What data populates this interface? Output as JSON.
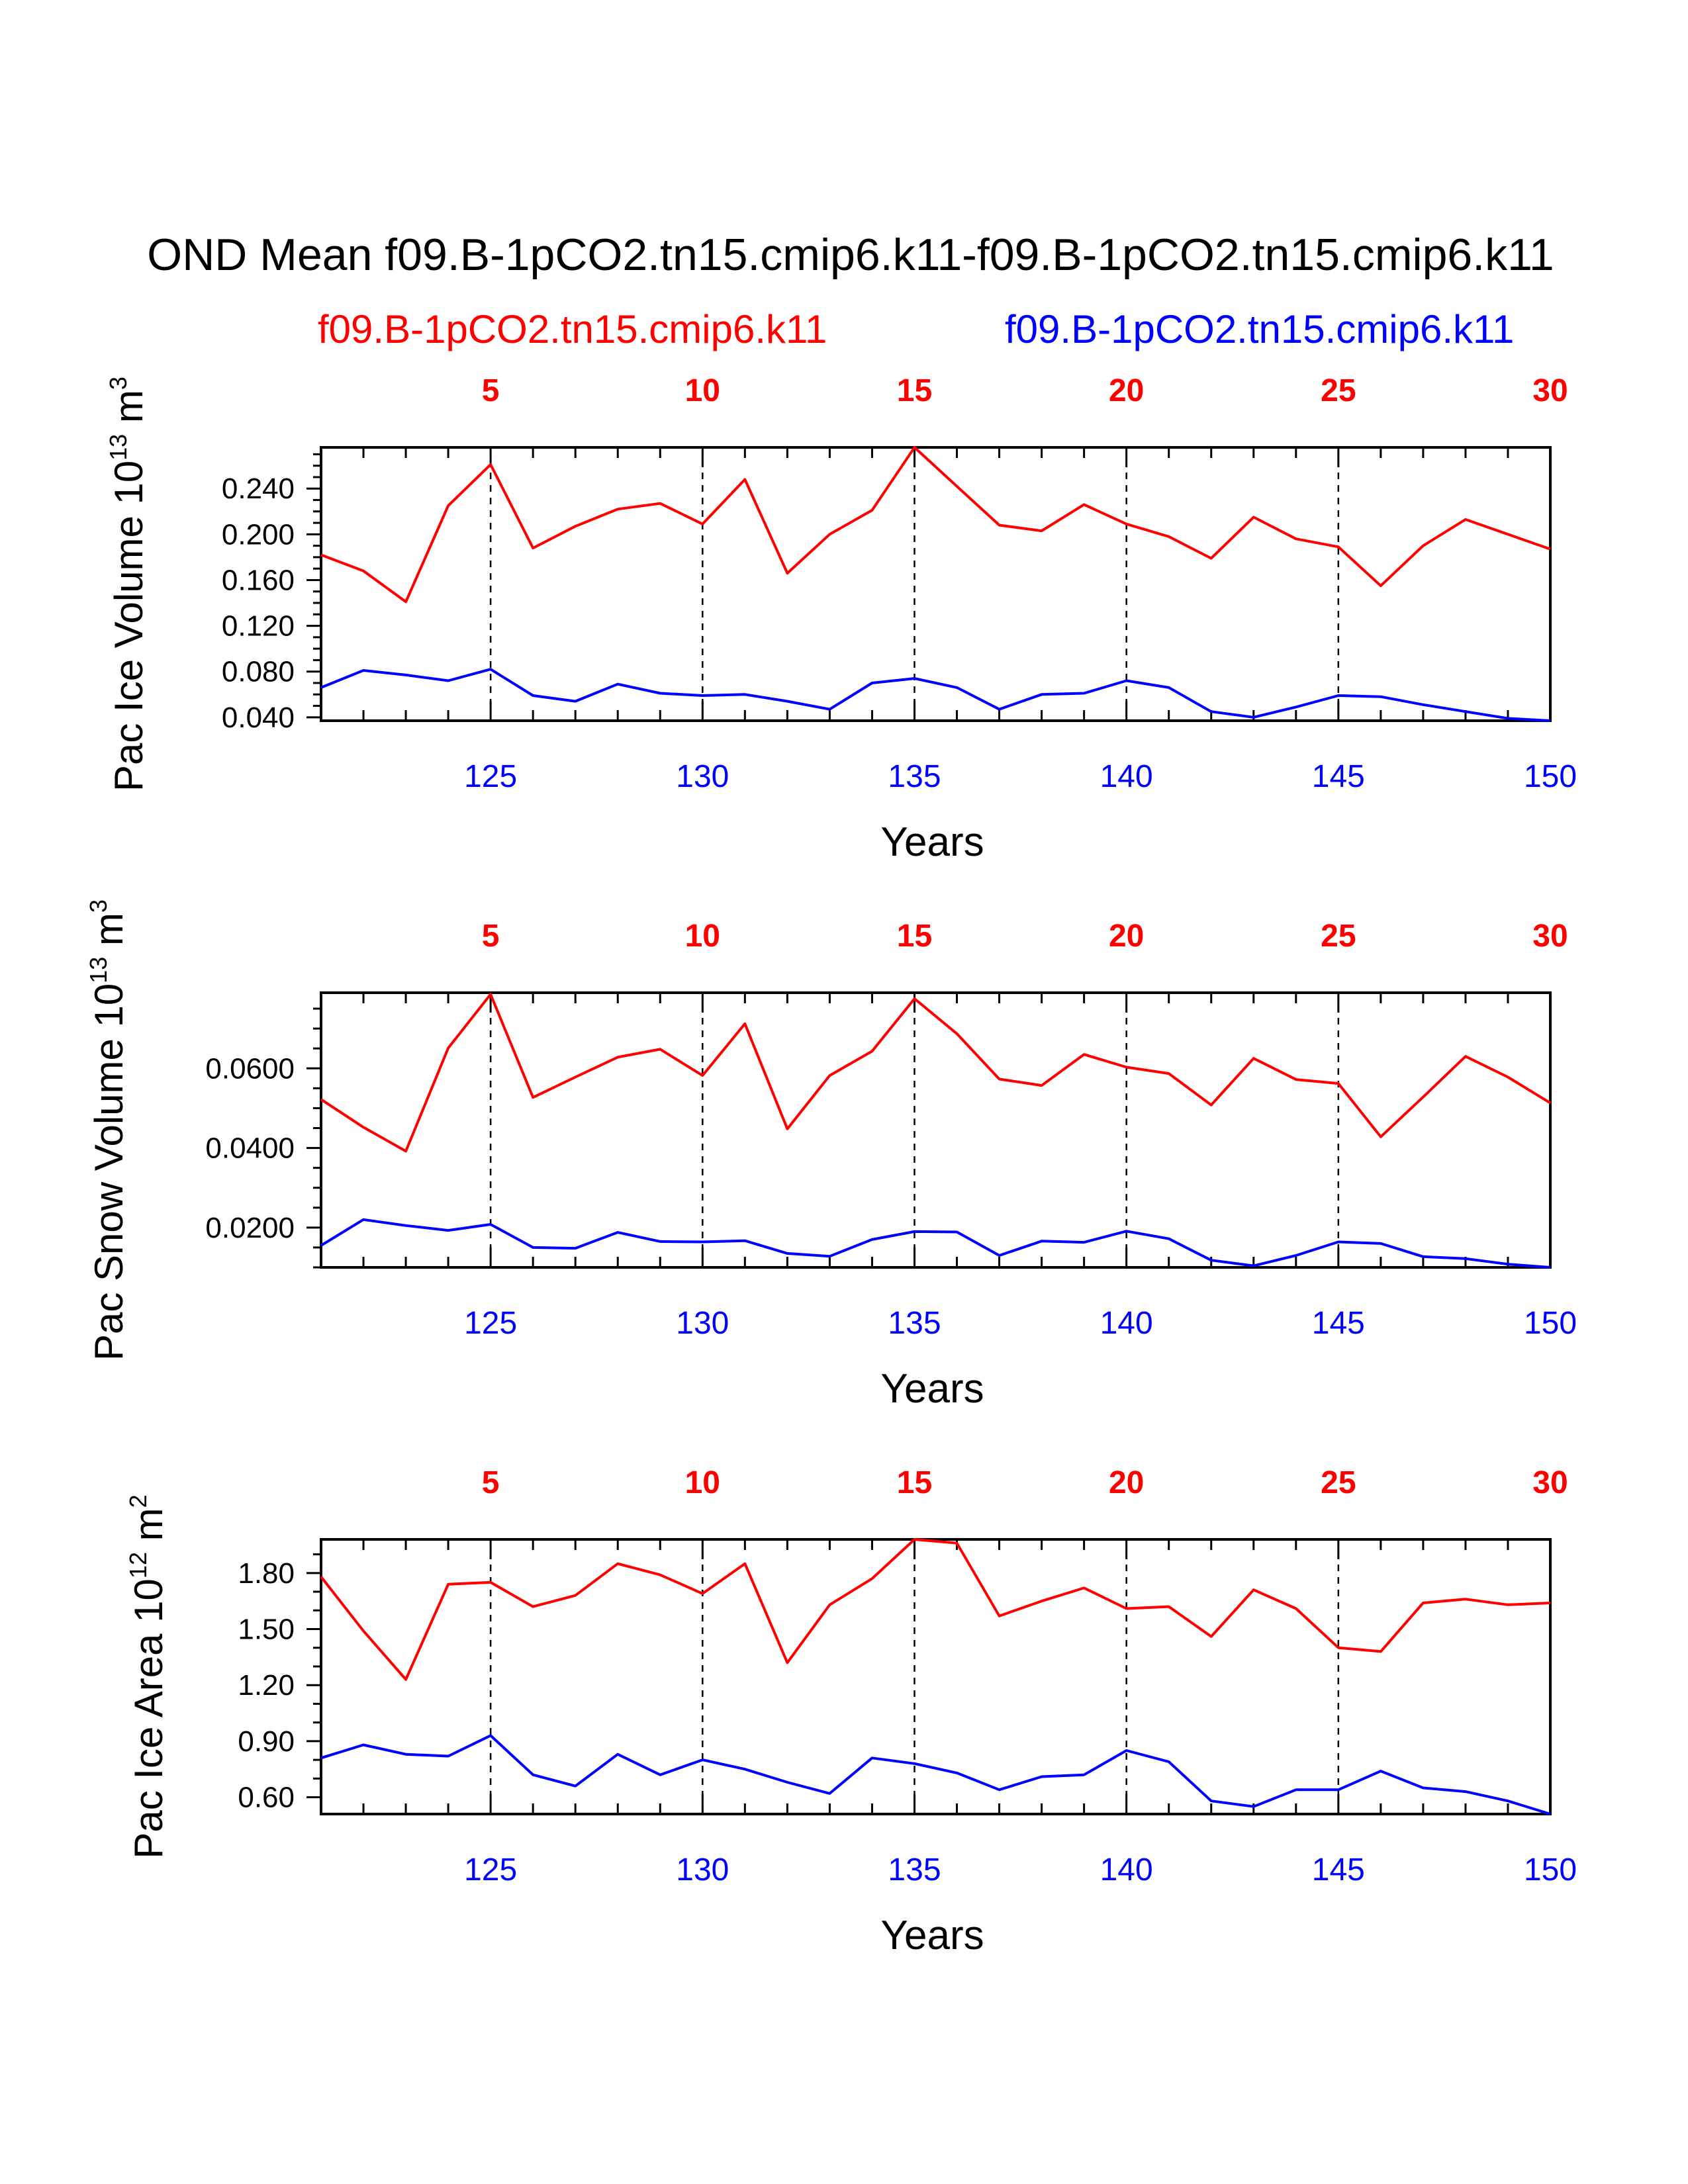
{
  "title": "OND Mean f09.B-1pCO2.tn15.cmip6.k11-f09.B-1pCO2.tn15.cmip6.k11",
  "legend": {
    "red": "f09.B-1pCO2.tn15.cmip6.k11",
    "blue": "f09.B-1pCO2.tn15.cmip6.k11"
  },
  "colors": {
    "red": "#ff0000",
    "blue": "#0000ff",
    "axis": "#000000"
  },
  "chart_data": [
    {
      "type": "line",
      "ylabel_main": "Pac Ice Volume 10",
      "ylabel_exp": "13",
      "ylabel_unit": " m",
      "ylabel_unit_exp": "3",
      "xlabel": "Years",
      "xlim": [
        121,
        150
      ],
      "ylim": [
        0.037,
        0.276
      ],
      "yticks": [
        0.04,
        0.08,
        0.12,
        0.16,
        0.2,
        0.24
      ],
      "ytick_labels": [
        "0.040",
        "0.080",
        "0.120",
        "0.160",
        "0.200",
        "0.240"
      ],
      "ytick_minor_step": 0.01,
      "bottom_ticks": [
        125,
        130,
        135,
        140,
        145,
        150
      ],
      "bottom_tick_labels": [
        "125",
        "130",
        "135",
        "140",
        "145",
        "150"
      ],
      "top_ticks": [
        125,
        130,
        135,
        140,
        145,
        150
      ],
      "top_tick_labels": [
        "5",
        "10",
        "15",
        "20",
        "25",
        "30"
      ],
      "x": [
        121,
        122,
        123,
        124,
        125,
        126,
        127,
        128,
        129,
        130,
        131,
        132,
        133,
        134,
        135,
        136,
        137,
        138,
        139,
        140,
        141,
        142,
        143,
        144,
        145,
        146,
        147,
        148,
        149,
        150
      ],
      "series": [
        {
          "name": "f09.B-1pCO2.tn15.cmip6.k11",
          "color": "red",
          "values": [
            0.182,
            0.168,
            0.141,
            0.225,
            0.261,
            0.188,
            0.207,
            0.222,
            0.227,
            0.209,
            0.248,
            0.166,
            0.2,
            0.221,
            0.276,
            0.242,
            0.208,
            0.203,
            0.226,
            0.209,
            0.198,
            0.179,
            0.215,
            0.196,
            0.189,
            0.155,
            0.19,
            0.213,
            0.2,
            0.187
          ]
        },
        {
          "name": "f09.B-1pCO2.tn15.cmip6.k11",
          "color": "blue",
          "values": [
            0.066,
            0.081,
            0.077,
            0.072,
            0.082,
            0.059,
            0.054,
            0.069,
            0.061,
            0.059,
            0.06,
            0.054,
            0.047,
            0.07,
            0.074,
            0.066,
            0.047,
            0.06,
            0.061,
            0.072,
            0.066,
            0.045,
            0.04,
            0.049,
            0.059,
            0.058,
            0.051,
            0.045,
            0.039,
            0.037
          ]
        }
      ]
    },
    {
      "type": "line",
      "ylabel_main": "Pac Snow Volume 10",
      "ylabel_exp": "13",
      "ylabel_unit": " m",
      "ylabel_unit_exp": "3",
      "xlabel": "Years",
      "xlim": [
        121,
        150
      ],
      "ylim": [
        0.01,
        0.079
      ],
      "yticks": [
        0.02,
        0.04,
        0.06
      ],
      "ytick_labels": [
        "0.0200",
        "0.0400",
        "0.0600"
      ],
      "ytick_minor_step": 0.005,
      "bottom_ticks": [
        125,
        130,
        135,
        140,
        145,
        150
      ],
      "bottom_tick_labels": [
        "125",
        "130",
        "135",
        "140",
        "145",
        "150"
      ],
      "top_ticks": [
        125,
        130,
        135,
        140,
        145,
        150
      ],
      "top_tick_labels": [
        "5",
        "10",
        "15",
        "20",
        "25",
        "30"
      ],
      "x": [
        121,
        122,
        123,
        124,
        125,
        126,
        127,
        128,
        129,
        130,
        131,
        132,
        133,
        134,
        135,
        136,
        137,
        138,
        139,
        140,
        141,
        142,
        143,
        144,
        145,
        146,
        147,
        148,
        149,
        150
      ],
      "series": [
        {
          "name": "f09.B-1pCO2.tn15.cmip6.k11",
          "color": "red",
          "values": [
            0.0522,
            0.0452,
            0.0392,
            0.0651,
            0.0786,
            0.0527,
            0.0578,
            0.0628,
            0.0648,
            0.0582,
            0.0712,
            0.0448,
            0.0582,
            0.0643,
            0.0775,
            0.0687,
            0.0573,
            0.0557,
            0.0635,
            0.0603,
            0.0587,
            0.0508,
            0.0625,
            0.0572,
            0.0562,
            0.0428,
            0.0528,
            0.063,
            0.0578,
            0.0513
          ]
        },
        {
          "name": "f09.B-1pCO2.tn15.cmip6.k11",
          "color": "blue",
          "values": [
            0.0155,
            0.022,
            0.0205,
            0.0193,
            0.0208,
            0.015,
            0.0148,
            0.0188,
            0.0165,
            0.0164,
            0.0167,
            0.0135,
            0.0128,
            0.017,
            0.019,
            0.0189,
            0.013,
            0.0166,
            0.0163,
            0.0191,
            0.0172,
            0.0118,
            0.0104,
            0.013,
            0.0164,
            0.016,
            0.0127,
            0.0122,
            0.0108,
            0.01
          ]
        }
      ]
    },
    {
      "type": "line",
      "ylabel_main": "Pac Ice Area 10",
      "ylabel_exp": "12",
      "ylabel_unit": " m",
      "ylabel_unit_exp": "2",
      "xlabel": "Years",
      "xlim": [
        121,
        150
      ],
      "ylim": [
        0.51,
        1.98
      ],
      "yticks": [
        0.6,
        0.9,
        1.2,
        1.5,
        1.8
      ],
      "ytick_labels": [
        "0.60",
        "0.90",
        "1.20",
        "1.50",
        "1.80"
      ],
      "ytick_minor_step": 0.1,
      "bottom_ticks": [
        125,
        130,
        135,
        140,
        145,
        150
      ],
      "bottom_tick_labels": [
        "125",
        "130",
        "135",
        "140",
        "145",
        "150"
      ],
      "top_ticks": [
        125,
        130,
        135,
        140,
        145,
        150
      ],
      "top_tick_labels": [
        "5",
        "10",
        "15",
        "20",
        "25",
        "30"
      ],
      "x": [
        121,
        122,
        123,
        124,
        125,
        126,
        127,
        128,
        129,
        130,
        131,
        132,
        133,
        134,
        135,
        136,
        137,
        138,
        139,
        140,
        141,
        142,
        143,
        144,
        145,
        146,
        147,
        148,
        149,
        150
      ],
      "series": [
        {
          "name": "f09.B-1pCO2.tn15.cmip6.k11",
          "color": "red",
          "values": [
            1.78,
            1.49,
            1.23,
            1.74,
            1.75,
            1.62,
            1.68,
            1.85,
            1.79,
            1.69,
            1.85,
            1.32,
            1.63,
            1.77,
            1.98,
            1.96,
            1.57,
            1.65,
            1.72,
            1.61,
            1.62,
            1.46,
            1.71,
            1.61,
            1.4,
            1.38,
            1.64,
            1.66,
            1.63,
            1.64
          ]
        },
        {
          "name": "f09.B-1pCO2.tn15.cmip6.k11",
          "color": "blue",
          "values": [
            0.81,
            0.88,
            0.83,
            0.82,
            0.93,
            0.72,
            0.66,
            0.83,
            0.72,
            0.8,
            0.75,
            0.68,
            0.62,
            0.81,
            0.78,
            0.73,
            0.64,
            0.71,
            0.72,
            0.85,
            0.79,
            0.58,
            0.55,
            0.64,
            0.64,
            0.74,
            0.65,
            0.63,
            0.58,
            0.51
          ]
        }
      ]
    }
  ]
}
